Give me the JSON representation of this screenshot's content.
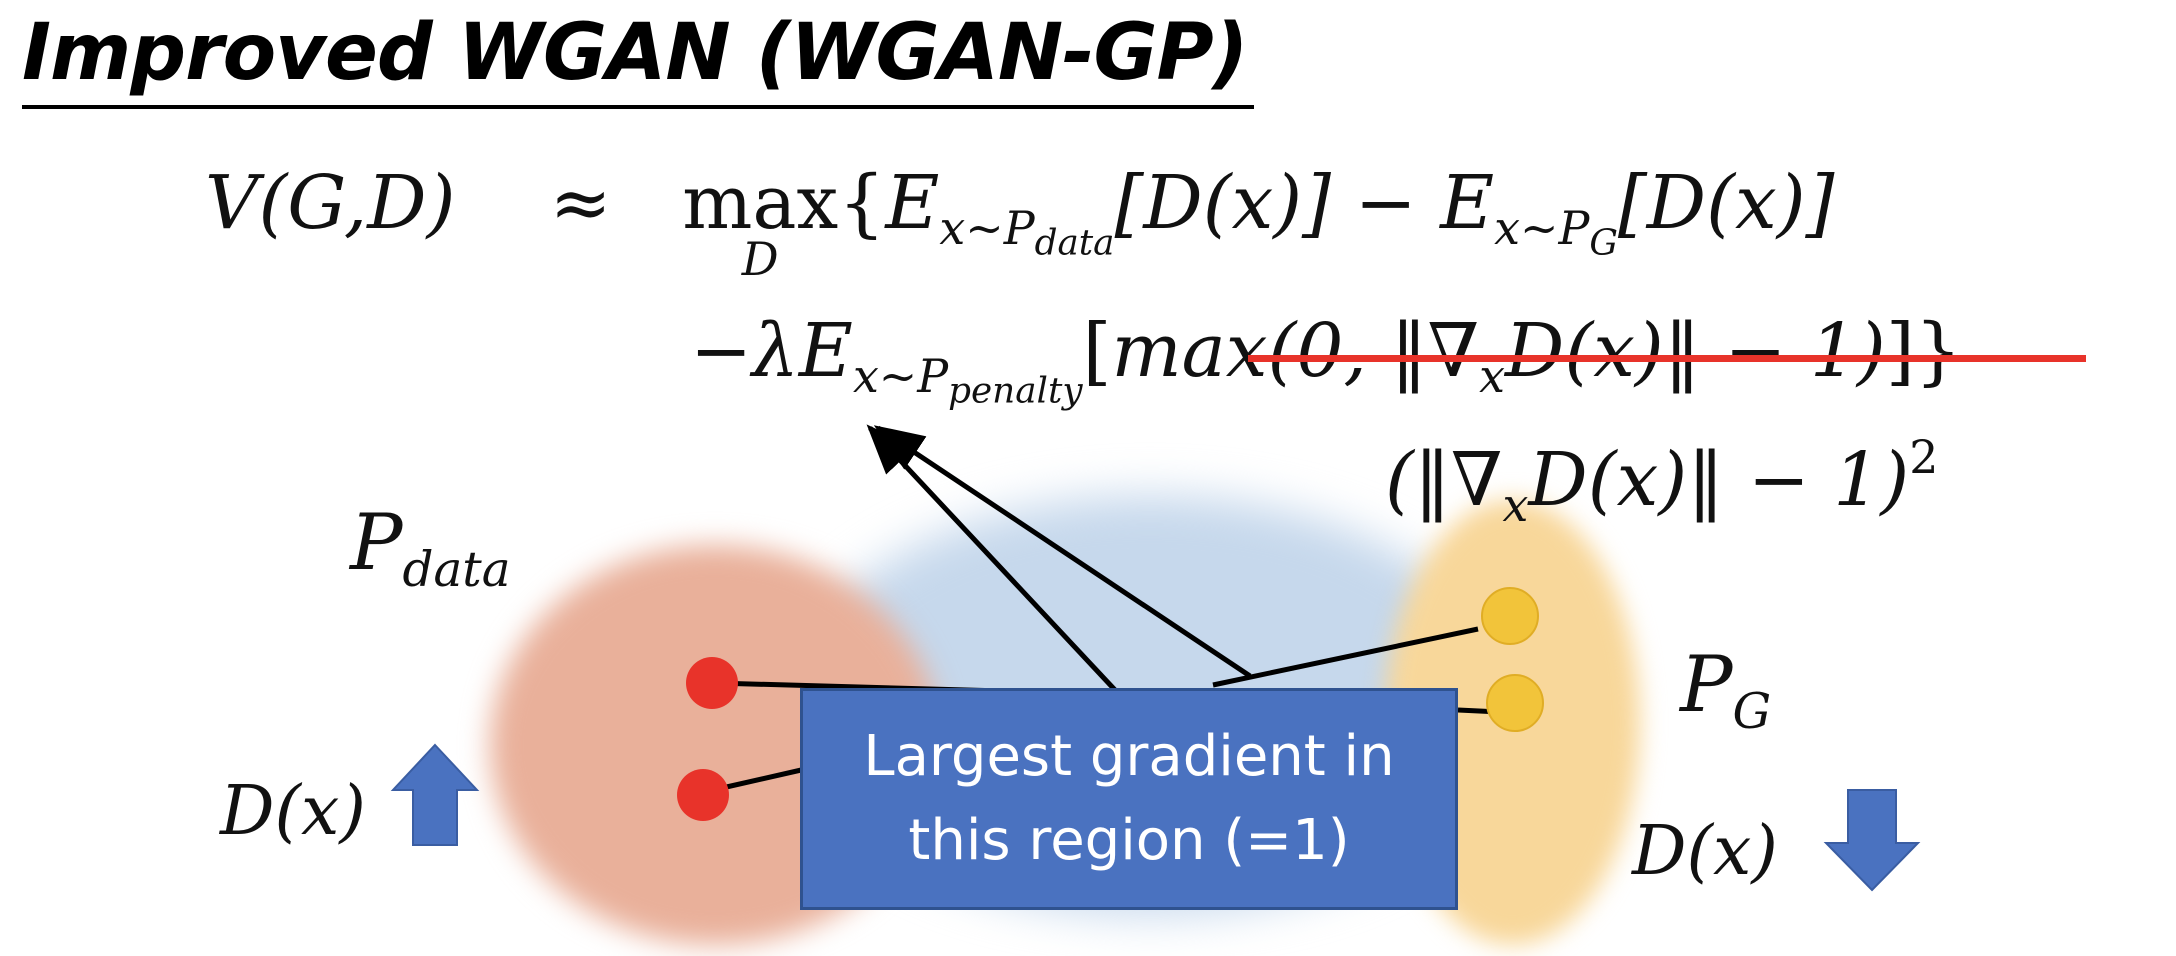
{
  "title": "Improved WGAN (WGAN-GP)",
  "formula": {
    "lhs": "V(G,D)",
    "approx": "≈",
    "max": "max",
    "max_sub": "D",
    "brace_open": "{",
    "e1": "E",
    "e1_sub_base": "x~P",
    "e1_subsub": "data",
    "dx1": "[D(x)]",
    "minus": "−",
    "e2": "E",
    "e2_sub_base": "x~P",
    "e2_subsub": "G",
    "dx2": "[D(x)]",
    "penalty_prefix": "−λE",
    "penalty_sub_base": "x~P",
    "penalty_subsub": "penalty",
    "bracket_open": "[",
    "struck_term": "max(0, ‖∇",
    "struck_sub": "x",
    "struck_term_end": "D(x)‖ − 1)",
    "bracket_close": "]}",
    "replacement_open": "(‖∇",
    "replacement_sub": "x",
    "replacement_mid": "D(x)‖ − 1)",
    "replacement_sup": "2"
  },
  "labels": {
    "pdata_base": "P",
    "pdata_sub": "data",
    "pg_base": "P",
    "pg_sub": "G",
    "dx_left": "D(x)",
    "dx_right": "D(x)"
  },
  "callout": {
    "line1": "Largest gradient in",
    "line2": "this region (=1)"
  },
  "colors": {
    "pdata_region": "#e9b09a",
    "middle_region": "#c6d8ec",
    "pg_region": "#f8d79a",
    "red_point": "#e8332a",
    "yellow_point": "#f2c43a",
    "arrow_blue": "#4a72c0",
    "strike": "#e8332a"
  }
}
